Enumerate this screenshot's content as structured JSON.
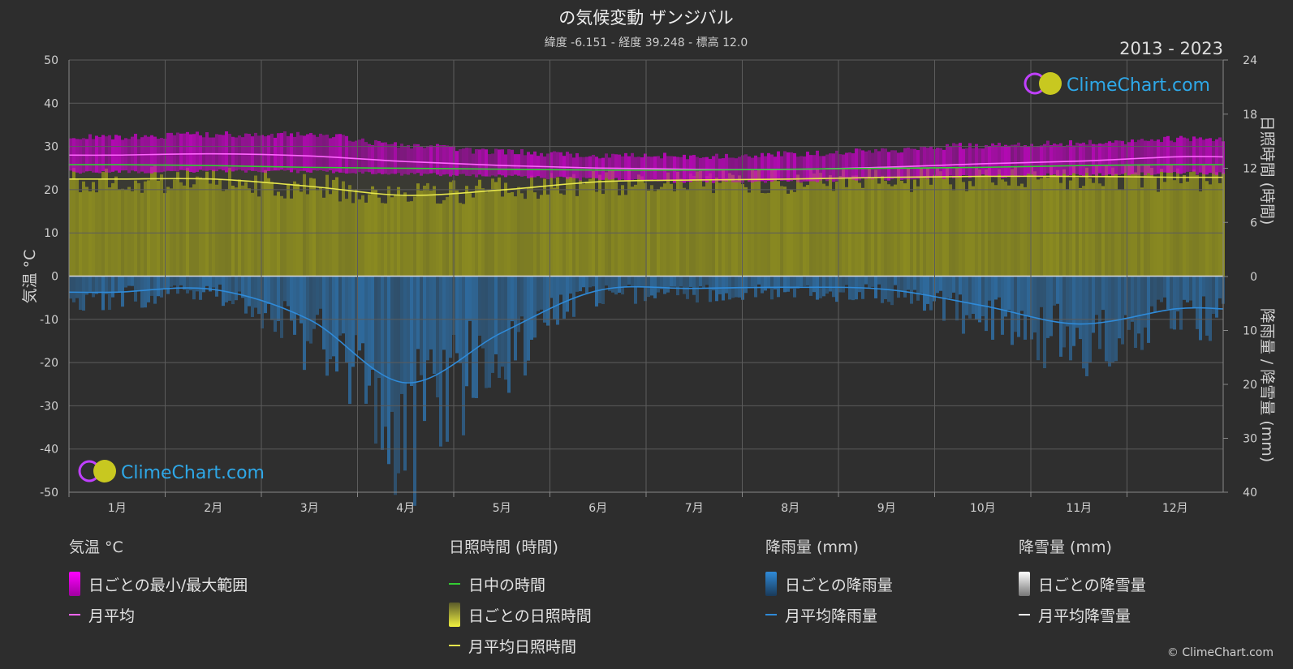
{
  "title": "の気候変動 ザンジバル",
  "subtitle": "緯度 -6.151 - 経度 39.248 - 標高 12.0",
  "year_range": "2013 - 2023",
  "logo_text": "ClimeChart.com",
  "copyright": "© ClimeChart.com",
  "chart_data": {
    "type": "line",
    "x": [
      "1月",
      "2月",
      "3月",
      "4月",
      "5月",
      "6月",
      "7月",
      "8月",
      "9月",
      "10月",
      "11月",
      "12月"
    ],
    "left_axis": {
      "label": "気温 °C",
      "range": [
        -50,
        50
      ],
      "ticks": [
        50,
        40,
        30,
        20,
        10,
        0,
        -10,
        -20,
        -30,
        -40,
        -50
      ]
    },
    "right_axis_sun": {
      "label": "日照時間 (時間)",
      "range": [
        0,
        24
      ],
      "ticks": [
        24,
        18,
        12,
        6,
        0
      ]
    },
    "right_axis_rain": {
      "label": "降雨量 / 降雪量 (mm)",
      "range": [
        0,
        40
      ],
      "ticks": [
        0,
        10,
        20,
        30,
        40
      ]
    },
    "grid": true,
    "series": [
      {
        "name": "月平均",
        "axis": "temperature",
        "color": "#ff66ff",
        "values": [
          28.0,
          28.3,
          27.8,
          26.5,
          25.6,
          25.0,
          24.7,
          24.7,
          25.2,
          26.0,
          26.6,
          27.6
        ]
      },
      {
        "name": "日中の時間",
        "axis": "sunshine",
        "color": "#33cc33",
        "values": [
          12.4,
          12.3,
          12.1,
          12.0,
          11.9,
          11.8,
          11.8,
          11.9,
          12.0,
          12.1,
          12.3,
          12.4
        ]
      },
      {
        "name": "月平均日照時間",
        "axis": "sunshine",
        "color": "#e6e64d",
        "values": [
          10.8,
          10.8,
          10.0,
          9.0,
          9.6,
          10.5,
          10.7,
          10.8,
          11.0,
          11.1,
          11.1,
          11.0
        ]
      },
      {
        "name": "月平均降雨量",
        "axis": "rain",
        "color": "#2f8ad8",
        "values": [
          2.9,
          2.4,
          8.0,
          19.7,
          10.4,
          2.6,
          2.2,
          2.0,
          2.4,
          5.4,
          8.8,
          6.0
        ]
      }
    ],
    "daily_temp_range": {
      "min": [
        24.5,
        24.7,
        24.6,
        24.0,
        23.5,
        22.8,
        22.3,
        22.4,
        22.9,
        23.5,
        23.9,
        24.2
      ],
      "max": [
        31.5,
        32.0,
        32.0,
        29.5,
        28.0,
        27.2,
        27.0,
        27.5,
        28.5,
        29.5,
        30.0,
        31.0
      ]
    }
  },
  "legend": {
    "temperature": {
      "heading": "気温 °C",
      "items": [
        "日ごとの最小/最大範囲",
        "月平均"
      ]
    },
    "sunshine": {
      "heading": "日照時間 (時間)",
      "items": [
        "日中の時間",
        "日ごとの日照時間",
        "月平均日照時間"
      ]
    },
    "rain": {
      "heading": "降雨量 (mm)",
      "items": [
        "日ごとの降雨量",
        "月平均降雨量"
      ]
    },
    "snow": {
      "heading": "降雪量 (mm)",
      "items": [
        "日ごとの降雪量",
        "月平均降雪量"
      ]
    }
  },
  "colors": {
    "background": "#2d2d2d",
    "temp_range": "#d400d4",
    "daylight": "#33cc33",
    "sunshine_fill": "#8f8f20",
    "sunshine_line": "#e6e64d",
    "rain": "#2f8ad8",
    "snow": "#ffffff",
    "monthly_temp": "#ff66ff"
  }
}
